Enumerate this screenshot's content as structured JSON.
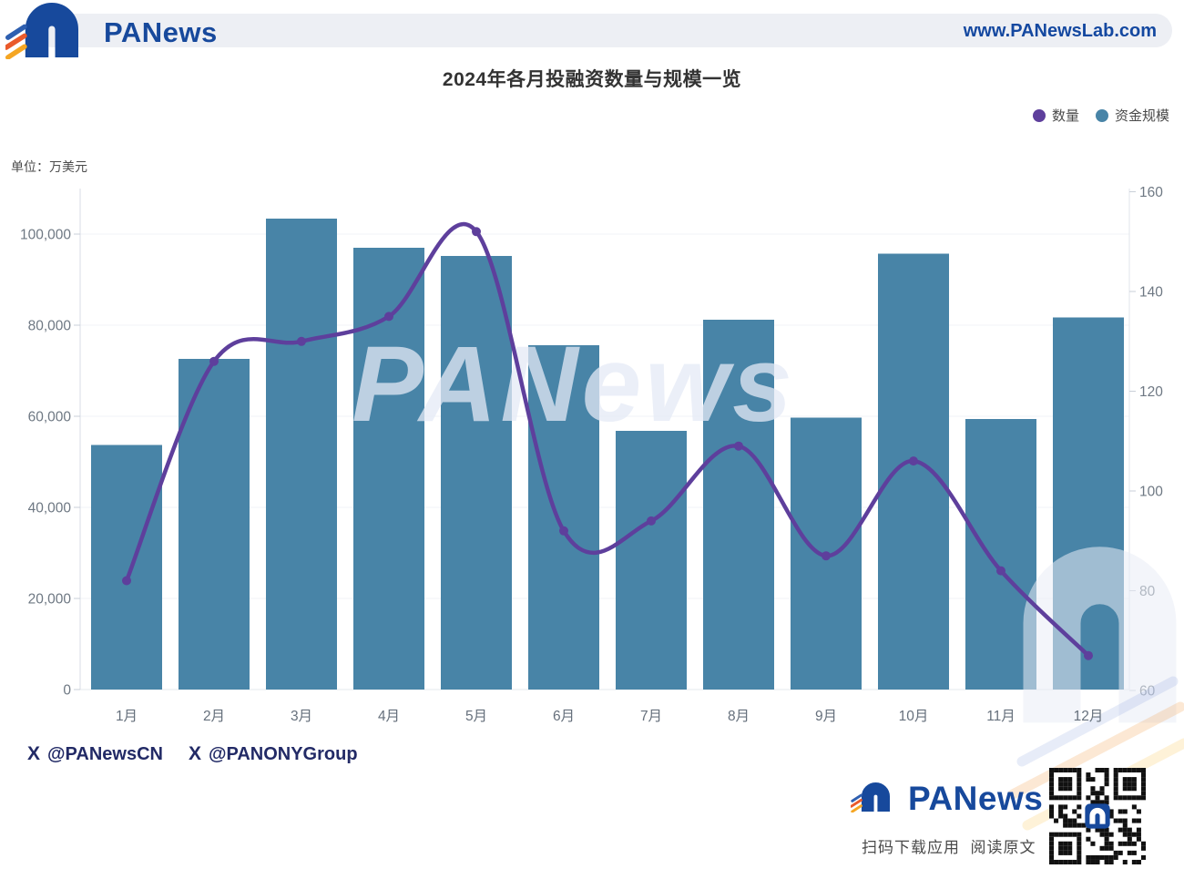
{
  "header": {
    "brand": "PANews",
    "url": "www.PANewsLab.com"
  },
  "chart": {
    "title": "2024年各月投融资数量与规模一览",
    "unit_label": "单位：万美元",
    "legend": [
      {
        "name": "数量",
        "color": "#5e3f9c"
      },
      {
        "name": "资金规模",
        "color": "#4884a7"
      }
    ]
  },
  "chart_data": {
    "type": "bar",
    "title": "2024年各月投融资数量与规模一览",
    "categories": [
      "1月",
      "2月",
      "3月",
      "4月",
      "5月",
      "6月",
      "7月",
      "8月",
      "9月",
      "10月",
      "11月",
      "12月"
    ],
    "series": [
      {
        "name": "资金规模",
        "type": "bar",
        "axis": "left",
        "color": "#4884a7",
        "values": [
          53700,
          72600,
          103400,
          97000,
          95200,
          75600,
          56800,
          81200,
          59700,
          95700,
          59400,
          81700
        ]
      },
      {
        "name": "数量",
        "type": "line",
        "axis": "right",
        "color": "#5e3f9c",
        "values": [
          82,
          126,
          130,
          135,
          152,
          92,
          94,
          109,
          87,
          106,
          84,
          67
        ]
      }
    ],
    "left_axis": {
      "unit": "万美元",
      "ticks": [
        0,
        20000,
        40000,
        60000,
        80000,
        100000
      ],
      "range": [
        0,
        110000
      ]
    },
    "right_axis": {
      "ticks": [
        60,
        80,
        100,
        120,
        140,
        160
      ],
      "range": [
        60,
        160
      ]
    },
    "xlabel": "",
    "ylabel": "单位：万美元",
    "grid": true,
    "legend_position": "top-right"
  },
  "watermark": {
    "text": "PANews"
  },
  "footer": {
    "handles": [
      {
        "icon": "x-logo",
        "label": "@PANewsCN"
      },
      {
        "icon": "x-logo",
        "label": "@PANONYGroup"
      }
    ],
    "brand": "PANews",
    "caption": "扫码下载应用  阅读原文"
  }
}
